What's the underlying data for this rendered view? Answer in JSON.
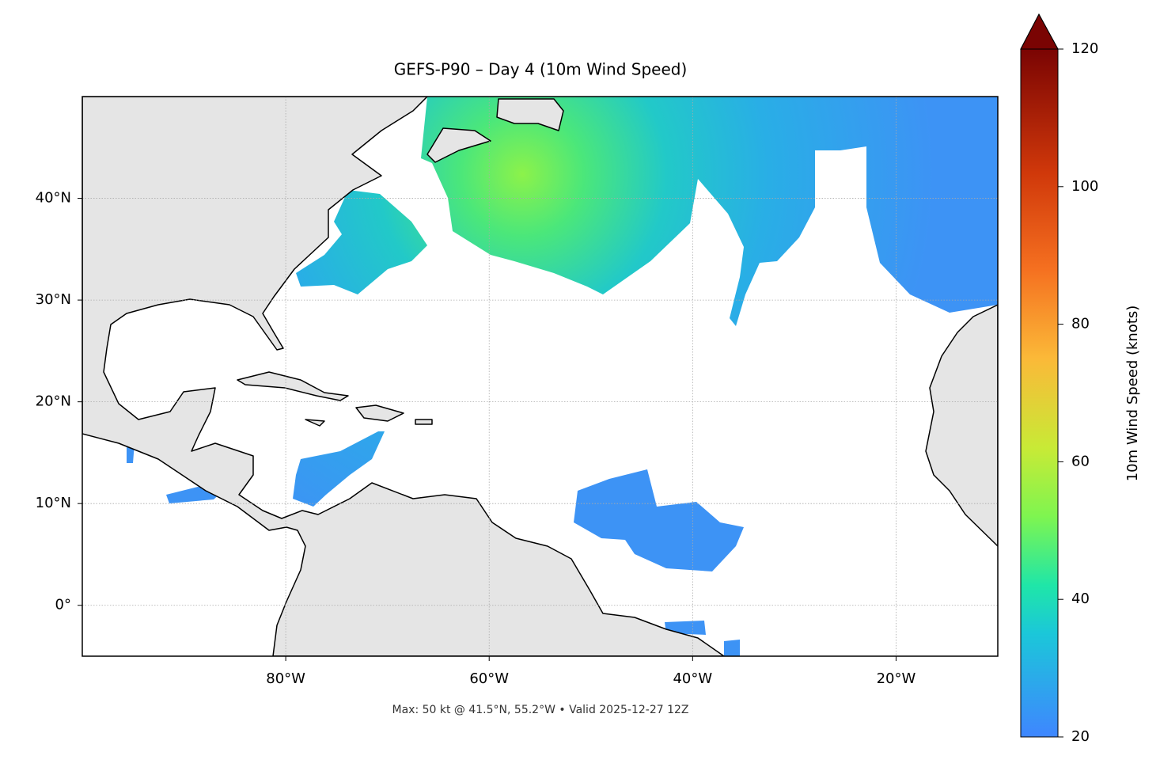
{
  "chart_data": {
    "type": "map",
    "title": "GEFS-P90 – Day 4 (10m Wind Speed)",
    "note": "Max: 50 kt @ 41.5°N, 55.2°W • Valid 2025-12-27 12Z",
    "xlim": [
      -100,
      -10
    ],
    "ylim": [
      -5,
      50
    ],
    "xticks": [
      {
        "value": -80,
        "label": "80°W"
      },
      {
        "value": -60,
        "label": "60°W"
      },
      {
        "value": -40,
        "label": "40°W"
      },
      {
        "value": -20,
        "label": "20°W"
      }
    ],
    "yticks": [
      {
        "value": 0,
        "label": "0°"
      },
      {
        "value": 10,
        "label": "10°N"
      },
      {
        "value": 20,
        "label": "20°N"
      },
      {
        "value": 30,
        "label": "30°N"
      },
      {
        "value": 40,
        "label": "40°N"
      }
    ],
    "grid": true,
    "colorbar": {
      "label": "10m Wind Speed (knots)",
      "lim": [
        20,
        120
      ],
      "ticks": [
        20,
        40,
        60,
        80,
        100,
        120
      ],
      "extend": "max"
    }
  }
}
